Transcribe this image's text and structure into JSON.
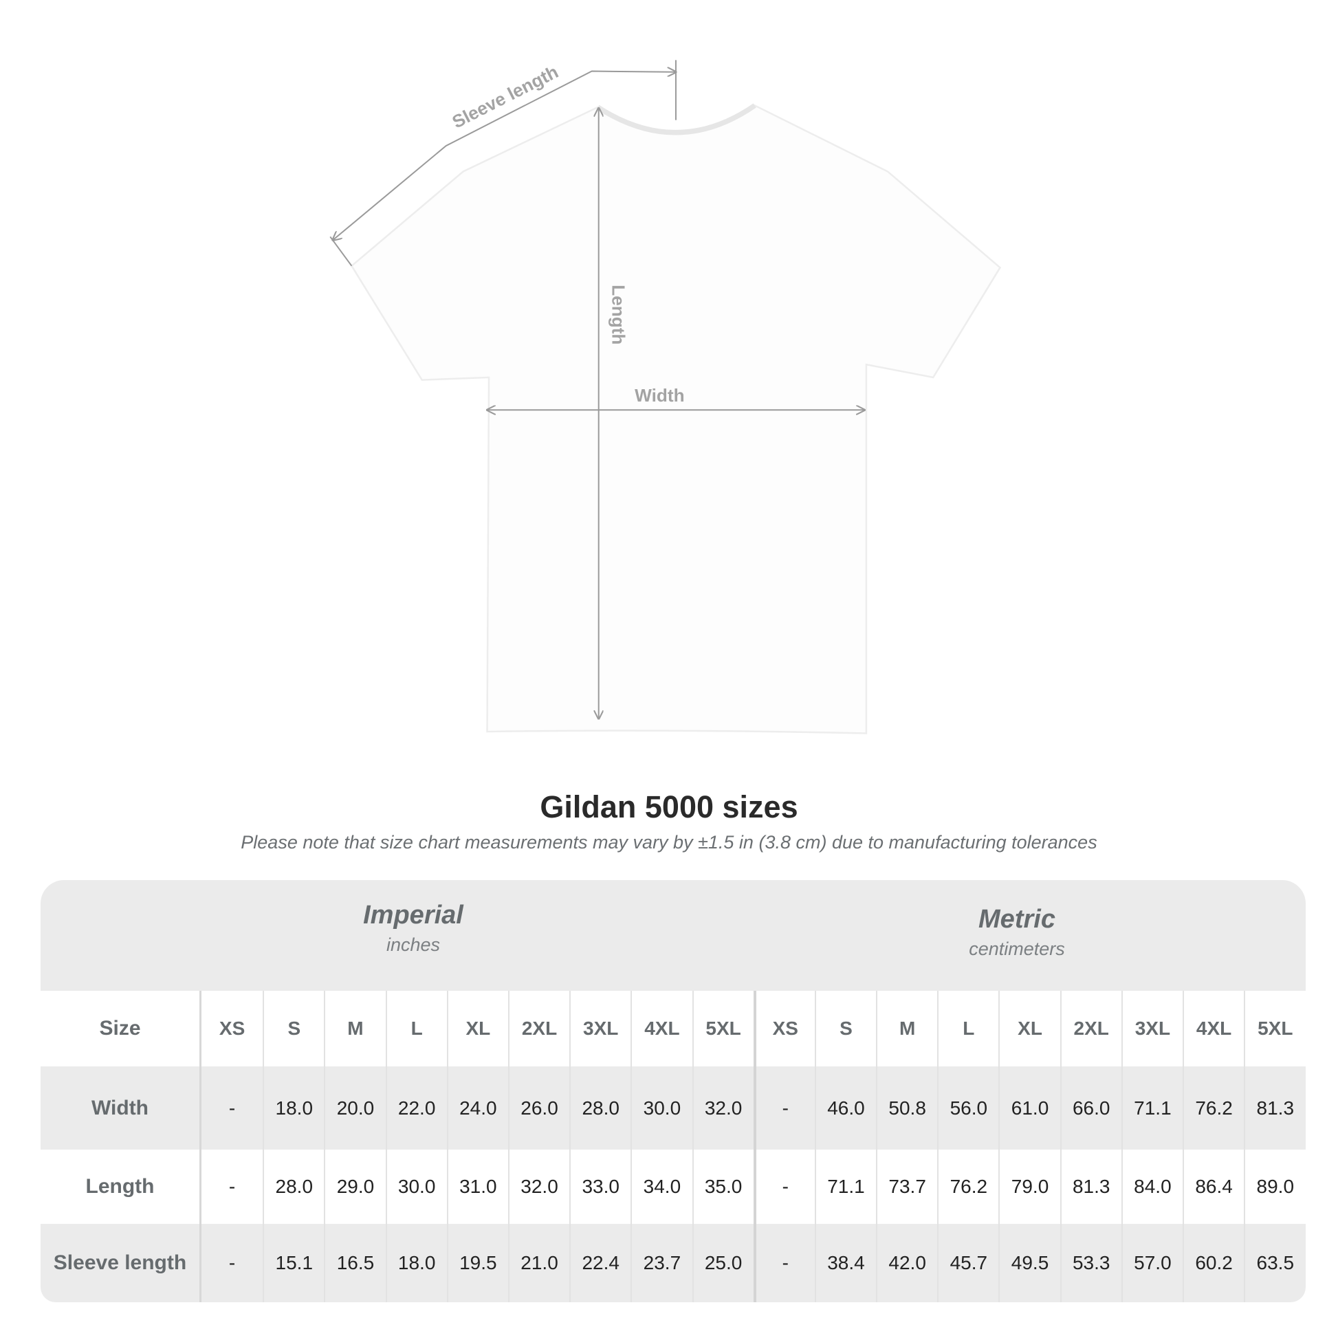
{
  "diagram": {
    "labels": {
      "sleeve": "Sleeve length",
      "length": "Length",
      "width": "Width"
    },
    "shirt_color": "#fdfdfd",
    "line_color": "#9a9a9a"
  },
  "title": "Gildan 5000 sizes",
  "subtitle": "Please note that size chart measurements may vary by ±1.5 in (3.8 cm) due to manufacturing tolerances",
  "units": {
    "imperial": {
      "title": "Imperial",
      "sub": "inches"
    },
    "metric": {
      "title": "Metric",
      "sub": "centimeters"
    }
  },
  "table": {
    "size_label": "Size",
    "sizes": [
      "XS",
      "S",
      "M",
      "L",
      "XL",
      "2XL",
      "3XL",
      "4XL",
      "5XL",
      "XS",
      "S",
      "M",
      "L",
      "XL",
      "2XL",
      "3XL",
      "4XL",
      "5XL"
    ],
    "rows": [
      {
        "label": "Width",
        "values": [
          "-",
          "18.0",
          "20.0",
          "22.0",
          "24.0",
          "26.0",
          "28.0",
          "30.0",
          "32.0",
          "-",
          "46.0",
          "50.8",
          "56.0",
          "61.0",
          "66.0",
          "71.1",
          "76.2",
          "81.3"
        ]
      },
      {
        "label": "Length",
        "values": [
          "-",
          "28.0",
          "29.0",
          "30.0",
          "31.0",
          "32.0",
          "33.0",
          "34.0",
          "35.0",
          "-",
          "71.1",
          "73.7",
          "76.2",
          "79.0",
          "81.3",
          "84.0",
          "86.4",
          "89.0"
        ]
      },
      {
        "label": "Sleeve length",
        "values": [
          "-",
          "15.1",
          "16.5",
          "18.0",
          "19.5",
          "21.0",
          "22.4",
          "23.7",
          "25.0",
          "-",
          "38.4",
          "42.0",
          "45.7",
          "49.5",
          "53.3",
          "57.0",
          "60.2",
          "63.5"
        ]
      }
    ]
  }
}
